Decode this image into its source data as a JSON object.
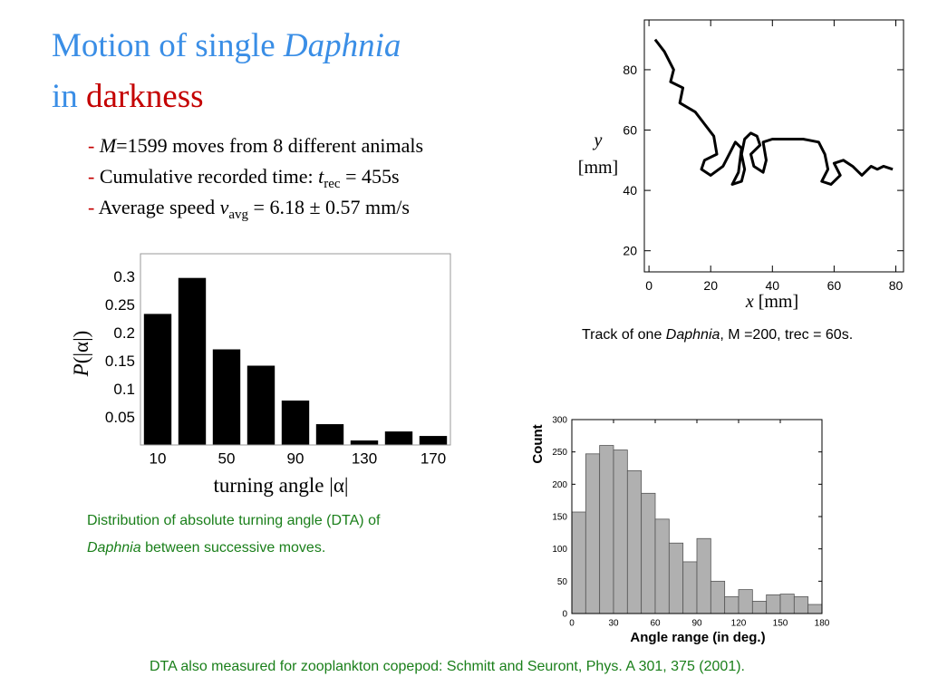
{
  "title": {
    "line1": [
      "Motion of single",
      "Daphnia"
    ],
    "line2": [
      "in",
      "darkness"
    ]
  },
  "bullets": [
    [
      "-",
      "M",
      "=1599 moves from 8 different animals"
    ],
    [
      "-",
      "Cumulative recorded time:",
      "t",
      "rec",
      "= 455s"
    ],
    [
      "-",
      "Average speed",
      "v",
      "avg",
      "= 6.18 ± 0.57 mm/s"
    ]
  ],
  "captions": {
    "track": [
      "Track of one",
      "Daphnia",
      ", M =200, trec = 60s."
    ],
    "dta": [
      "Distribution of absolute turning angle (DTA) of",
      "Daphnia",
      "between successive moves."
    ],
    "footer": "DTA also measured for zooplankton copepod: Schmitt and Seuront, Phys. A 301, 375 (2001)."
  },
  "chart_data": [
    {
      "type": "line",
      "xlabel": [
        "x",
        "[mm]"
      ],
      "ylabel": [
        "y",
        "[mm]"
      ],
      "color": "#000000",
      "xlim": [
        -1.5,
        82.5
      ],
      "ylim": [
        13,
        96.5
      ],
      "xticks": [
        0,
        20,
        40,
        60,
        80
      ],
      "yticks": [
        20,
        40,
        60,
        80
      ],
      "x": [
        2,
        5,
        8,
        7,
        11,
        10,
        15,
        18,
        21,
        22,
        18,
        17,
        20,
        24,
        26,
        28,
        30,
        29,
        27,
        30,
        31,
        30,
        31,
        33,
        35,
        36,
        33,
        34,
        37,
        38,
        37,
        40,
        45,
        50,
        55,
        57,
        58,
        56,
        59,
        62,
        60,
        63,
        66,
        69,
        72,
        74,
        76,
        79
      ],
      "values": [
        90,
        86,
        80,
        76,
        74,
        69,
        66,
        62,
        58,
        52,
        50,
        47,
        45,
        48,
        52,
        56,
        54,
        46,
        42,
        43,
        47,
        52,
        57,
        59,
        58,
        55,
        52,
        48,
        46,
        50,
        56,
        57,
        57,
        57,
        56,
        52,
        47,
        43,
        42,
        45,
        49,
        50,
        48,
        45,
        48,
        47,
        48,
        47
      ]
    },
    {
      "type": "bar",
      "xlabel": "turning angle |α|",
      "ylabel": [
        "P",
        "(|α|)"
      ],
      "color": "#000000",
      "xlim": [
        0,
        180
      ],
      "ylim": [
        0,
        0.34
      ],
      "xticks": [
        10,
        50,
        90,
        130,
        170
      ],
      "yticks": [
        0.05,
        0.1,
        0.15,
        0.2,
        0.25,
        0.3
      ],
      "x": [
        10,
        30,
        50,
        70,
        90,
        110,
        130,
        150,
        170
      ],
      "values": [
        0.233,
        0.297,
        0.17,
        0.141,
        0.079,
        0.037,
        0.008,
        0.024,
        0.016
      ]
    },
    {
      "type": "histogram",
      "xlabel": "Angle range (in deg.)",
      "ylabel": "Count",
      "color": "#b0b0b0",
      "xlim": [
        0,
        180
      ],
      "ylim": [
        0,
        300
      ],
      "xticks": [
        0,
        30,
        60,
        90,
        120,
        150,
        180
      ],
      "yticks": [
        0,
        50,
        100,
        150,
        200,
        250,
        300
      ],
      "bins": [
        0,
        10,
        20,
        30,
        40,
        50,
        60,
        70,
        80,
        90,
        100,
        110,
        120,
        130,
        140,
        150,
        160,
        170,
        180
      ],
      "values": [
        157,
        247,
        260,
        253,
        221,
        186,
        146,
        109,
        80,
        116,
        50,
        26,
        37,
        19,
        29,
        30,
        26,
        14
      ]
    }
  ]
}
